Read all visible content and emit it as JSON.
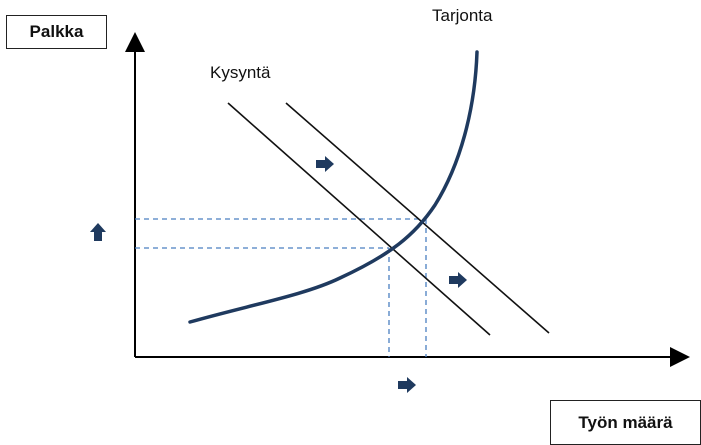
{
  "labels": {
    "y_axis": "Palkka",
    "x_axis": "Työn määrä",
    "demand_curve": "Kysyntä",
    "supply_curve": "Tarjonta"
  },
  "colors": {
    "curve": "#1f3a5f",
    "axis": "#000000",
    "guides": "#4a7fc1",
    "arrow": "#1f3a5f"
  },
  "icons": [
    "arrow-right-icon",
    "arrow-up-icon"
  ]
}
